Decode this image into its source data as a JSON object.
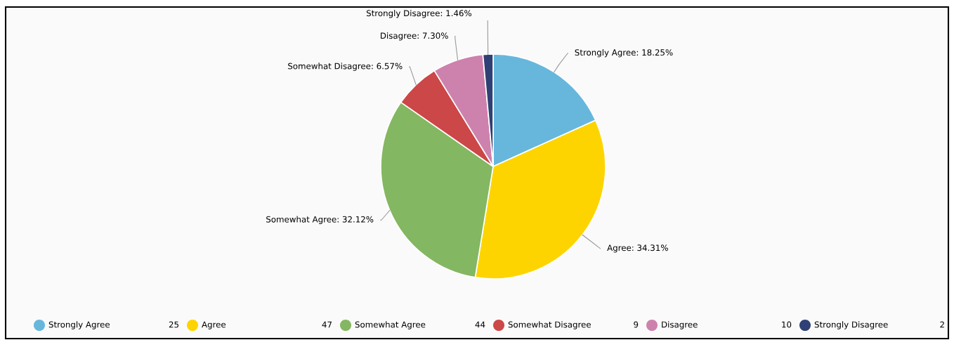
{
  "chart_data": {
    "type": "pie",
    "categories": [
      "Strongly Agree",
      "Agree",
      "Somewhat Agree",
      "Somewhat Disagree",
      "Disagree",
      "Strongly Disagree"
    ],
    "values": [
      18.25,
      34.31,
      32.12,
      6.57,
      7.3,
      1.46
    ],
    "value_labels": [
      "Strongly Agree: 18.25%",
      "Agree: 34.31%",
      "Somewhat Agree: 32.12%",
      "Somewhat Disagree: 6.57%",
      "Disagree: 7.30%",
      "Strongly Disagree: 1.46%"
    ],
    "annotations": [
      "25",
      "47",
      "44",
      "9",
      "10",
      "2"
    ],
    "colors": [
      "#67b7dc",
      "#fdd400",
      "#84b761",
      "#cc4748",
      "#cd82ad",
      "#2f4074"
    ],
    "legend": "bottom"
  }
}
